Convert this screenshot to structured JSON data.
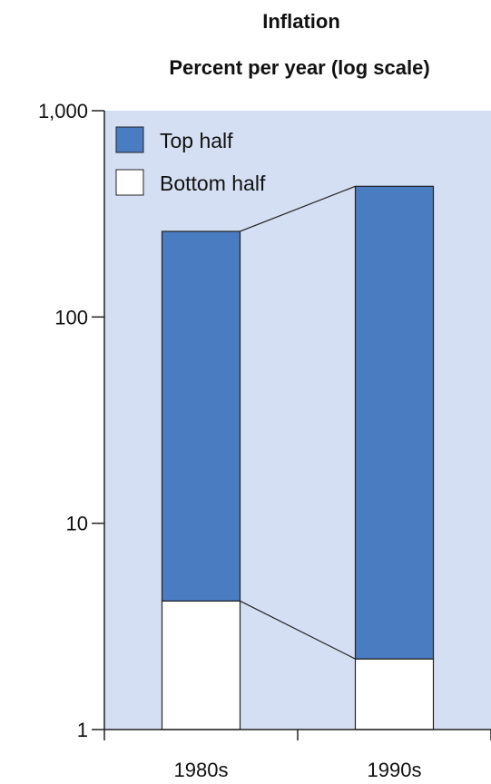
{
  "chart_data": {
    "type": "bar",
    "stacked": true,
    "title": "Inflation",
    "subtitle": "Percent per year (log scale)",
    "ylabel": "",
    "xlabel": "",
    "y_scale": "log",
    "ylim": [
      1,
      1000
    ],
    "y_ticks": [
      {
        "value": 1,
        "label": "1"
      },
      {
        "value": 10,
        "label": "10"
      },
      {
        "value": 100,
        "label": "100"
      },
      {
        "value": 1000,
        "label": "1,000"
      }
    ],
    "categories": [
      "1980s",
      "1990s"
    ],
    "series": [
      {
        "name": "Bottom half",
        "values": [
          4.2,
          2.2
        ],
        "color": "#ffffff"
      },
      {
        "name": "Top half",
        "values": [
          260,
          430
        ],
        "color": "#4a7cc2"
      }
    ],
    "legend_position": "top-left",
    "connector_lines": true,
    "grid": false
  },
  "colors": {
    "plot_background": "#d5dff3",
    "top_half": "#4a7cc2",
    "bottom_half": "#ffffff",
    "outline": "#222222"
  }
}
